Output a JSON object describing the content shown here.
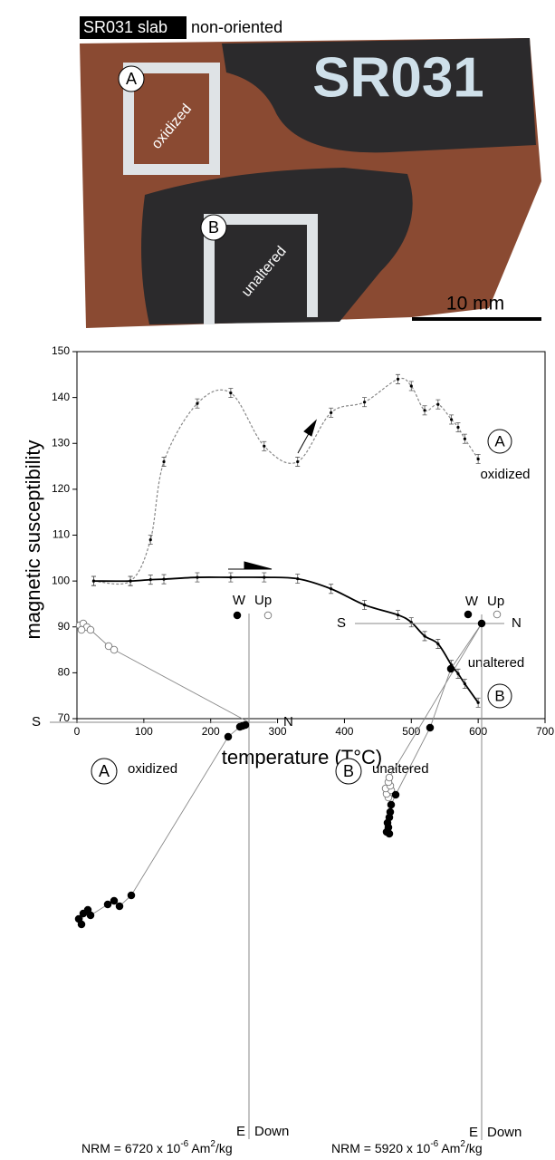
{
  "photo": {
    "label": "SR031 slab",
    "caption": "non-oriented",
    "painted_text": "SR031",
    "marker_a": "A",
    "marker_b": "B",
    "area_a": "oxidized",
    "area_b": "unaltered",
    "scale_bar": "10 mm"
  },
  "chart_data": [
    {
      "type": "line",
      "xlabel": "temperature (T°C)",
      "ylabel": "magnetic susceptibility",
      "x": [
        25,
        80,
        110,
        130,
        180,
        230,
        280,
        330,
        380,
        430,
        480,
        500,
        520,
        540,
        560,
        570,
        580,
        600
      ],
      "series": [
        {
          "color": "#888888",
          "dashed": true,
          "error": 1,
          "values": [
            100,
            100,
            109,
            126,
            138.7,
            141,
            129.4,
            126,
            136.7,
            139,
            144,
            142.5,
            137.2,
            138.5,
            135.2,
            133.5,
            131,
            126.6
          ]
        },
        {
          "color": "#000000",
          "dashed": false,
          "error": 1,
          "values": [
            100,
            100,
            100.3,
            100.4,
            100.8,
            100.8,
            100.8,
            100.5,
            98.3,
            94.8,
            92.6,
            91,
            88,
            86.3,
            81.7,
            79.8,
            77.6,
            73.5
          ]
        }
      ],
      "annotations": [
        "A",
        "oxidized",
        "B",
        "unaltered"
      ],
      "xlim": [
        0,
        700
      ],
      "xticks": [
        0,
        100,
        200,
        300,
        400,
        500,
        600,
        700
      ],
      "ylim": [
        70,
        150
      ],
      "yticks": [
        70,
        80,
        90,
        100,
        110,
        120,
        130,
        140,
        150
      ]
    },
    {
      "type": "scatter",
      "marker_label": "A",
      "title": "oxidized",
      "axis_labels": {
        "left": "S",
        "right": "N",
        "top_left": "W",
        "top_right": "Up",
        "bottom_left": "E",
        "bottom_right": "Down"
      },
      "note": [
        "NRM = 6720 x 10",
        "-6",
        " Am",
        "2",
        "/kg"
      ],
      "xlim": [
        -2.2,
        0.3
      ],
      "ylim": [
        -4.6,
        1.2
      ],
      "series": [
        {
          "marker": "open",
          "line": true,
          "x": [
            -1.87,
            -1.83,
            -1.79,
            -1.85,
            -1.75,
            -1.55,
            -1.49
          ],
          "values": [
            1.07,
            1.09,
            1.05,
            1.02,
            1.02,
            0.84,
            0.8
          ]
        },
        {
          "marker": "filled",
          "line": true,
          "x": [
            -1.88,
            -1.85,
            -1.83,
            -1.78,
            -1.75,
            -1.56,
            -1.49,
            -1.43,
            -1.3,
            -0.23,
            -0.1,
            -0.07,
            -0.04
          ],
          "values": [
            -2.17,
            -2.23,
            -2.11,
            -2.07,
            -2.13,
            -2.01,
            -1.97,
            -2.03,
            -1.91,
            -0.16,
            -0.05,
            -0.04,
            -0.03
          ]
        },
        {
          "marker": "filled",
          "line": false,
          "x": [
            -0.13
          ],
          "values": [
            1.18
          ]
        },
        {
          "marker": "open",
          "line": false,
          "x": [
            0.21
          ],
          "values": [
            1.18
          ]
        }
      ]
    },
    {
      "type": "scatter",
      "marker_label": "B",
      "title": "unaltered",
      "axis_labels": {
        "left": "S",
        "right": "N",
        "top_left": "W",
        "top_right": "Up",
        "bottom_left": "E",
        "bottom_right": "Down"
      },
      "note": [
        "NRM = 5920 x 10",
        "-6",
        " Am",
        "2",
        "/kg"
      ],
      "xlim": [
        -1.4,
        0.25
      ],
      "ylim": [
        -5.7,
        0.1
      ],
      "series": [
        {
          "marker": "open",
          "line": true,
          "x": [
            -1.03,
            -1.05,
            -1.0,
            -1.06,
            -1.01,
            -1.03,
            -1.02
          ],
          "values": [
            -1.92,
            -1.88,
            -1.84,
            -1.82,
            -1.79,
            -1.75,
            -1.7
          ]
        },
        {
          "marker": "filled",
          "line": true,
          "x": [
            -1.02,
            -1.05,
            -1.03,
            -1.04,
            -1.02,
            -1.01,
            -1.0,
            -0.95,
            -0.57,
            -0.34,
            0
          ],
          "values": [
            -2.32,
            -2.3,
            -2.25,
            -2.2,
            -2.14,
            -2.08,
            -2.0,
            -1.89,
            -1.15,
            -0.5,
            0
          ]
        },
        {
          "marker": "filled",
          "line": false,
          "x": [
            -0.15
          ],
          "values": [
            0.1
          ]
        },
        {
          "marker": "open",
          "line": false,
          "x": [
            0.17
          ],
          "values": [
            0.1
          ]
        }
      ]
    }
  ]
}
